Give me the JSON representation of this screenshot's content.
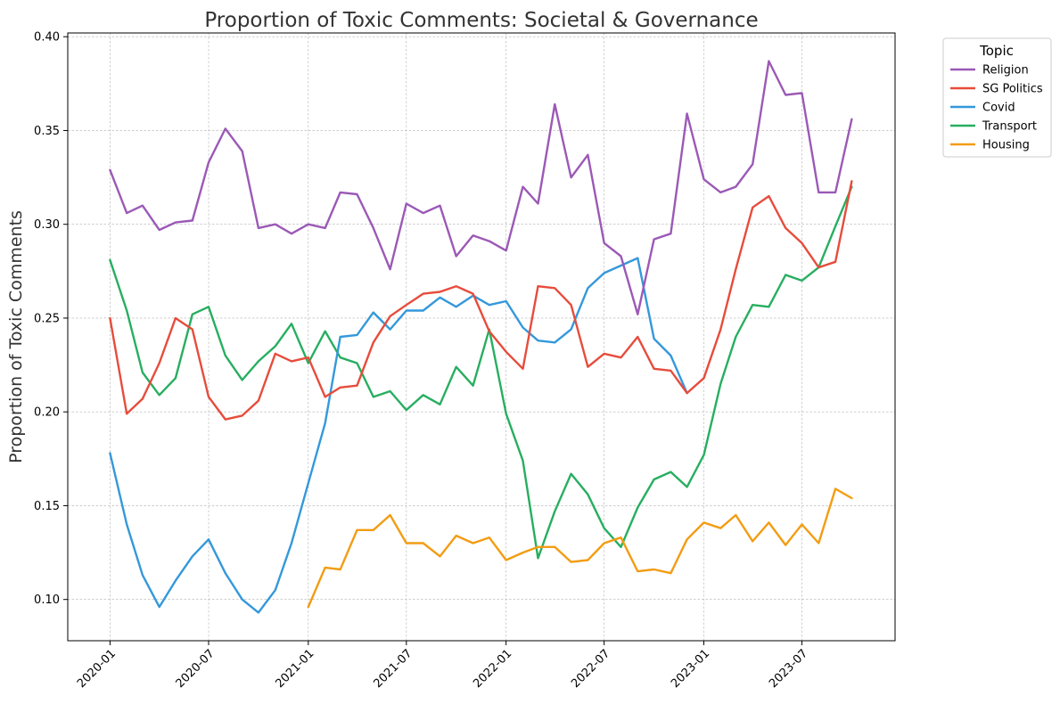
{
  "chart_data": {
    "type": "line",
    "title": "Proportion of Toxic Comments: Societal & Governance",
    "xlabel": "",
    "ylabel": "Proportion of Toxic Comments",
    "ylim": [
      0.078,
      0.402
    ],
    "xlim": [
      "2019-10-15",
      "2023-12-20"
    ],
    "grid": true,
    "legend_title": "Topic",
    "legend_position": "outside-top-right",
    "x_tick_labels": [
      "2020-01",
      "2020-07",
      "2021-01",
      "2021-07",
      "2022-01",
      "2022-07",
      "2023-01",
      "2023-07"
    ],
    "y_tick_labels": [
      "0.10",
      "0.15",
      "0.20",
      "0.25",
      "0.30",
      "0.35",
      "0.40"
    ],
    "y_ticks": [
      0.1,
      0.15,
      0.2,
      0.25,
      0.3,
      0.35,
      0.4
    ],
    "series": [
      {
        "name": "Religion",
        "color": "#9b59b6",
        "start": "2020-01",
        "values": [
          0.329,
          0.306,
          0.31,
          0.297,
          0.301,
          0.302,
          0.333,
          0.351,
          0.339,
          0.298,
          0.3,
          0.295,
          0.3,
          0.298,
          0.317,
          0.316,
          0.298,
          0.276,
          0.311,
          0.306,
          0.31,
          0.283,
          0.294,
          0.291,
          0.286,
          0.32,
          0.311,
          0.364,
          0.325,
          0.337,
          0.29,
          0.283,
          0.252,
          0.292,
          0.295,
          0.359,
          0.324,
          0.317,
          0.32,
          0.332,
          0.387,
          0.369,
          0.37,
          0.317,
          0.317,
          0.356
        ]
      },
      {
        "name": "SG Politics",
        "color": "#e74c3c",
        "start": "2020-01",
        "values": [
          0.25,
          0.199,
          0.207,
          0.226,
          0.25,
          0.244,
          0.208,
          0.196,
          0.198,
          0.206,
          0.231,
          0.227,
          0.229,
          0.208,
          0.213,
          0.214,
          0.237,
          0.251,
          0.257,
          0.263,
          0.264,
          0.267,
          0.263,
          0.243,
          0.232,
          0.223,
          0.267,
          0.266,
          0.257,
          0.224,
          0.231,
          0.229,
          0.24,
          0.223,
          0.222,
          0.21,
          0.218,
          0.244,
          0.276,
          0.309,
          0.315,
          0.298,
          0.29,
          0.277,
          0.28,
          0.323
        ]
      },
      {
        "name": "Covid",
        "color": "#3498db",
        "start": "2020-01",
        "values": [
          0.178,
          0.14,
          0.113,
          0.096,
          0.11,
          0.123,
          0.132,
          0.114,
          0.1,
          0.093,
          0.105,
          0.13,
          0.162,
          0.194,
          0.24,
          0.241,
          0.253,
          0.244,
          0.254,
          0.254,
          0.261,
          0.256,
          0.262,
          0.257,
          0.259,
          0.245,
          0.238,
          0.237,
          0.244,
          0.266,
          0.274,
          0.278,
          0.282,
          0.239,
          0.23,
          0.21
        ]
      },
      {
        "name": "Transport",
        "color": "#27ae60",
        "start": "2020-01",
        "values": [
          0.281,
          0.254,
          0.221,
          0.209,
          0.218,
          0.252,
          0.256,
          0.23,
          0.217,
          0.227,
          0.235,
          0.247,
          0.226,
          0.243,
          0.229,
          0.226,
          0.208,
          0.211,
          0.201,
          0.209,
          0.204,
          0.224,
          0.214,
          0.244,
          0.199,
          0.174,
          0.122,
          0.147,
          0.167,
          0.156,
          0.138,
          0.128,
          0.149,
          0.164,
          0.168,
          0.16,
          0.177,
          0.215,
          0.24,
          0.257,
          0.256,
          0.273,
          0.27,
          0.277,
          0.299,
          0.32
        ]
      },
      {
        "name": "Housing",
        "color": "#f39c12",
        "start": "2021-01",
        "values": [
          0.096,
          0.117,
          0.116,
          0.137,
          0.137,
          0.145,
          0.13,
          0.13,
          0.123,
          0.134,
          0.13,
          0.133,
          0.121,
          0.125,
          0.128,
          0.128,
          0.12,
          0.121,
          0.13,
          0.133,
          0.115,
          0.116,
          0.114,
          0.132,
          0.141,
          0.138,
          0.145,
          0.131,
          0.141,
          0.129,
          0.14,
          0.13,
          0.159,
          0.154
        ]
      }
    ]
  }
}
